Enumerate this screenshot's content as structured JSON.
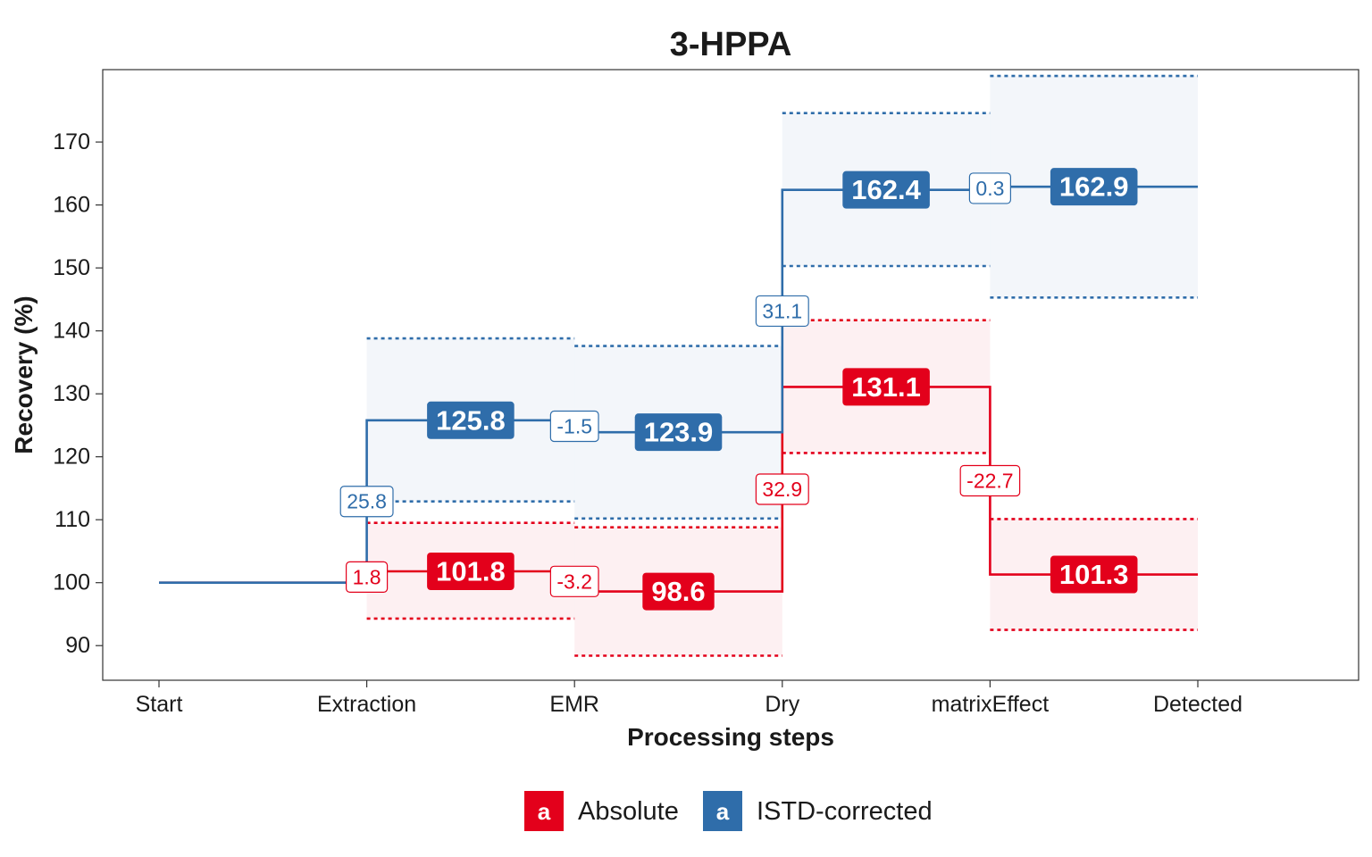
{
  "chart_data": {
    "type": "line",
    "title": "3-HPPA",
    "xlabel": "Processing steps",
    "ylabel": "Recovery (%)",
    "categories": [
      "Start",
      "Extraction",
      "EMR",
      "Dry",
      "matrixEffect",
      "Detected"
    ],
    "y_ticks": [
      90,
      100,
      110,
      120,
      130,
      140,
      150,
      160,
      170
    ],
    "ylim": [
      84.5,
      181.5
    ],
    "grid": false,
    "legend_position": "bottom",
    "colors": {
      "Absolute": "#E3001B",
      "ISTD-corrected": "#2F6DAA"
    },
    "legend_key_glyph": "a",
    "series": [
      {
        "name": "Absolute",
        "color": "#E3001B",
        "start": 100,
        "levels": [
          {
            "step": "Extraction",
            "value": 101.8,
            "label": "101.8",
            "lower": 94.3,
            "upper": 109.5,
            "change": "1.8"
          },
          {
            "step": "EMR",
            "value": 98.6,
            "label": "98.6",
            "lower": 88.4,
            "upper": 108.8,
            "change": "-3.2"
          },
          {
            "step": "Dry",
            "value": 131.1,
            "label": "131.1",
            "lower": 120.6,
            "upper": 141.7,
            "change": "32.9"
          },
          {
            "step": "matrixEffect",
            "value": 101.3,
            "label": "101.3",
            "lower": 92.5,
            "upper": 110.1,
            "change": "-22.7"
          }
        ]
      },
      {
        "name": "ISTD-corrected",
        "color": "#2F6DAA",
        "start": 100,
        "levels": [
          {
            "step": "Extraction",
            "value": 125.8,
            "label": "125.8",
            "lower": 112.9,
            "upper": 138.8,
            "change": "25.8"
          },
          {
            "step": "EMR",
            "value": 123.9,
            "label": "123.9",
            "lower": 110.2,
            "upper": 137.6,
            "change": "-1.5"
          },
          {
            "step": "Dry",
            "value": 162.4,
            "label": "162.4",
            "lower": 150.3,
            "upper": 174.6,
            "change": "31.1"
          },
          {
            "step": "matrixEffect",
            "value": 162.9,
            "label": "162.9",
            "lower": 145.3,
            "upper": 180.5,
            "change": "0.3"
          }
        ]
      }
    ]
  }
}
